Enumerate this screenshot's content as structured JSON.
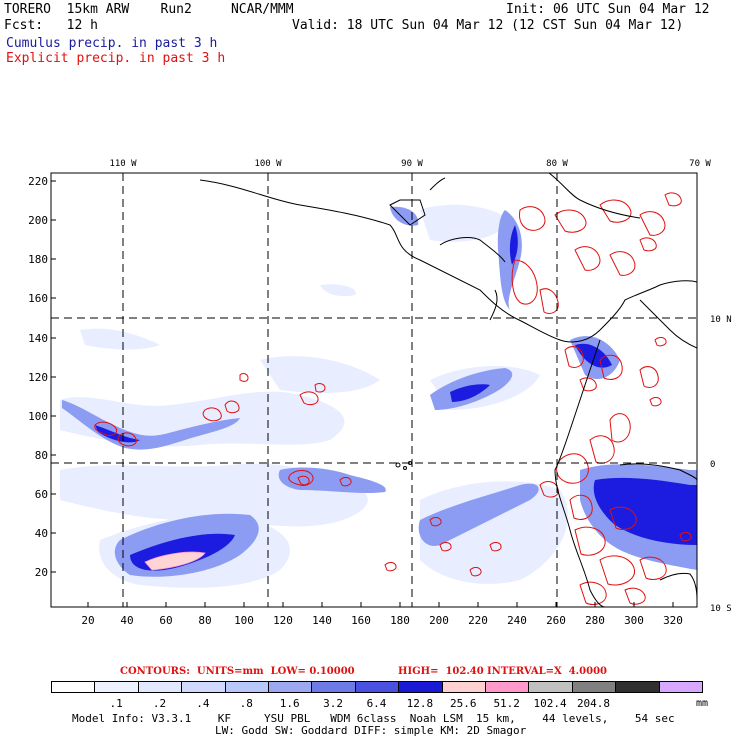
{
  "header": {
    "model": "TORERO  15km ARW    Run2     NCAR/MMM",
    "init": "Init: 06 UTC Sun 04 Mar 12",
    "fcst": "Fcst:   12 h",
    "valid": "Valid: 18 UTC Sun 04 Mar 12 (12 CST Sun 04 Mar 12)",
    "cumulus": "Cumulus precip. in past 3 h",
    "explicit": "Explicit precip. in past 3 h"
  },
  "map": {
    "lon_labels": [
      "110 W",
      "100 W",
      "90 W",
      "80 W",
      "70 W"
    ],
    "lat_labels": [
      "10 N",
      "0",
      "10 S"
    ],
    "y_ticks": [
      "220",
      "200",
      "180",
      "160",
      "140",
      "120",
      "100",
      "80",
      "60",
      "40",
      "20"
    ],
    "x_ticks": [
      "20",
      "40",
      "60",
      "80",
      "100",
      "120",
      "140",
      "160",
      "180",
      "200",
      "220",
      "240",
      "260",
      "280",
      "300",
      "320"
    ],
    "colors": {
      "land_line": "#000000",
      "grid_line": "#000000",
      "shade_light": "#e8eeff",
      "shade_1": "#c8d4ff",
      "shade_2": "#8c9cf2",
      "shade_3": "#5a64e6",
      "shade_4": "#1c1ce0",
      "explicit_contour": "#e01010",
      "peak": "#ffd4d4"
    }
  },
  "contours": {
    "label": "CONTOURS:  UNITS=mm  LOW= 0.10000",
    "high": "HIGH=  102.40",
    "interval": "INTERVAL=X  4.0000"
  },
  "colorbar": {
    "colors": [
      "#ffffff",
      "#eef2ff",
      "#e2e8ff",
      "#d0daff",
      "#b8c8fa",
      "#9ca8f0",
      "#6e7ae6",
      "#4a50e0",
      "#1a1ad6",
      "#ffd0d0",
      "#ff99cc",
      "#c0c0c0",
      "#808080",
      "#303030",
      "#d8a8ff"
    ],
    "labels": [
      ".1",
      ".2",
      ".4",
      ".8",
      "1.6",
      "3.2",
      "6.4",
      "12.8",
      "25.6",
      "51.2",
      "102.4",
      "204.8"
    ],
    "units": "mm"
  },
  "model_info": {
    "line1": "Model Info: V3.3.1    KF     YSU PBL   WDM 6class  Noah LSM  15 km,    44 levels,    54 sec",
    "line2": "LW: Godd SW: Goddard DIFF: simple KM: 2D Smagor"
  }
}
